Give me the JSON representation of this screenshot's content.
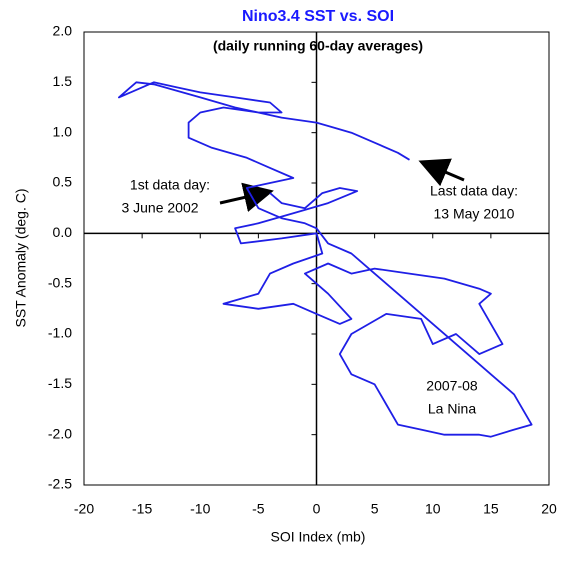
{
  "chart_data": {
    "type": "line",
    "title": "Nino3.4 SST vs. SOI",
    "subtitle": "(daily running 60-day averages)",
    "x_label": "SOI Index (mb)",
    "y_label": "SST Anomaly (deg. C)",
    "annotations": [
      "1st data day:",
      "3 June 2002",
      "Last data day:",
      "13 May 2010",
      "2007-08",
      "La Nina"
    ],
    "xlim": [
      -20,
      20
    ],
    "xticks": [
      -20,
      -15,
      -10,
      -5,
      0,
      5,
      10,
      15,
      20
    ],
    "ylim": [
      -2.5,
      2.0
    ],
    "yticks": [
      -2.5,
      {
        "value": -2,
        "label": "-2.0"
      },
      -1.5,
      {
        "value": -1,
        "label": "-1.0"
      },
      -0.5,
      {
        "value": 0,
        "label": "0.0"
      },
      0.5,
      {
        "value": 1,
        "label": "1.0"
      },
      1.5,
      {
        "value": 2,
        "label": "2.0"
      }
    ],
    "series": [
      {
        "color": "#1f1fe6",
        "x": [
          -4,
          -3,
          -1,
          0.5,
          2,
          3.5,
          1,
          -2,
          -5,
          -7,
          -6.5,
          -3,
          0,
          0.5,
          -2,
          -4,
          -5,
          -8,
          -5,
          -2,
          0,
          2,
          3,
          1,
          -1,
          1,
          3,
          5,
          8,
          11,
          14,
          15,
          14,
          15,
          16,
          14,
          12,
          10,
          9,
          6,
          3,
          2,
          3,
          5,
          6,
          7,
          9,
          11,
          14,
          15,
          17,
          18.5,
          17,
          15,
          13,
          10,
          7,
          5,
          3,
          1,
          0,
          -1,
          -3,
          -5,
          -6,
          -4,
          -2,
          -4,
          -6,
          -9,
          -11,
          -11,
          -10,
          -8,
          -5,
          -3,
          -4,
          -7,
          -10,
          -12,
          -14,
          -16,
          -17,
          -15.5,
          -14,
          -10,
          -7,
          -3,
          0,
          3,
          5,
          7,
          8
        ],
        "values": [
          0.4,
          0.3,
          0.25,
          0.4,
          0.45,
          0.42,
          0.3,
          0.2,
          0.1,
          0.05,
          -0.1,
          -0.05,
          0,
          -0.2,
          -0.3,
          -0.4,
          -0.6,
          -0.7,
          -0.75,
          -0.7,
          -0.8,
          -0.9,
          -0.85,
          -0.6,
          -0.4,
          -0.3,
          -0.4,
          -0.35,
          -0.4,
          -0.45,
          -0.55,
          -0.6,
          -0.7,
          -0.9,
          -1.1,
          -1.2,
          -1.0,
          -1.1,
          -0.85,
          -0.8,
          -1.0,
          -1.2,
          -1.4,
          -1.5,
          -1.7,
          -1.9,
          -1.95,
          -2.0,
          -2.0,
          -2.02,
          -1.95,
          -1.9,
          -1.6,
          -1.4,
          -1.2,
          -0.9,
          -0.6,
          -0.4,
          -0.2,
          -0.1,
          0.05,
          0.1,
          0.15,
          0.25,
          0.45,
          0.5,
          0.55,
          0.65,
          0.75,
          0.85,
          0.95,
          1.1,
          1.2,
          1.25,
          1.2,
          1.2,
          1.3,
          1.35,
          1.4,
          1.45,
          1.5,
          1.4,
          1.35,
          1.5,
          1.48,
          1.35,
          1.25,
          1.15,
          1.1,
          1.0,
          0.9,
          0.8,
          0.73
        ]
      }
    ]
  }
}
